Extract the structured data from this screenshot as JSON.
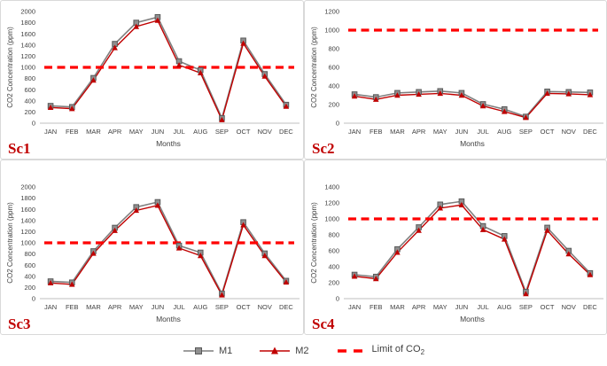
{
  "figure": {
    "legend": {
      "m1_label": "M1",
      "m2_label": "M2",
      "limit_label_main": "Limit of CO",
      "limit_label_sub": "2"
    },
    "colors": {
      "m1_line": "#7f7f7f",
      "m1_fill": "#8f8f8f",
      "m1_edge": "#595959",
      "m2": "#c00000",
      "limit": "#ff0000",
      "axis_text": "#3f3f3f",
      "axis_line": "#bfbfbf",
      "panel_label": "#c00000",
      "panel_border": "#d9d9d9"
    }
  },
  "chart_data": [
    {
      "type": "line",
      "panel_label": "Sc1",
      "xlabel": "Months",
      "ylabel": "CO2 Concentration (ppm)",
      "categories": [
        "JAN",
        "FEB",
        "MAR",
        "APR",
        "MAY",
        "JUN",
        "JUL",
        "AUG",
        "SEP",
        "OCT",
        "NOV",
        "DEC"
      ],
      "ylim": [
        0,
        2000
      ],
      "ytick_step": 200,
      "limit_line": 1000,
      "grid": false,
      "legend_position": "shared-bottom",
      "series": [
        {
          "name": "M1",
          "values": [
            310,
            290,
            810,
            1420,
            1800,
            1900,
            1110,
            950,
            90,
            1480,
            880,
            330
          ]
        },
        {
          "name": "M2",
          "values": [
            280,
            260,
            770,
            1350,
            1730,
            1840,
            1040,
            900,
            60,
            1430,
            840,
            300
          ]
        }
      ]
    },
    {
      "type": "line",
      "panel_label": "Sc2",
      "xlabel": "Months",
      "ylabel": "CO2 Concentration (ppm)",
      "categories": [
        "JAN",
        "FEB",
        "MAR",
        "APR",
        "MAY",
        "JUN",
        "JUL",
        "AUG",
        "SEP",
        "OCT",
        "NOV",
        "DEC"
      ],
      "ylim": [
        0,
        1200
      ],
      "ytick_step": 200,
      "limit_line": 1000,
      "grid": false,
      "legend_position": "shared-bottom",
      "series": [
        {
          "name": "M1",
          "values": [
            310,
            280,
            325,
            335,
            345,
            325,
            205,
            150,
            70,
            340,
            335,
            330
          ]
        },
        {
          "name": "M2",
          "values": [
            290,
            255,
            300,
            310,
            320,
            300,
            185,
            125,
            60,
            320,
            315,
            305
          ]
        }
      ]
    },
    {
      "type": "line",
      "panel_label": "Sc3",
      "xlabel": "Months",
      "ylabel": "CO2 Concentration (ppm)",
      "categories": [
        "JAN",
        "FEB",
        "MAR",
        "APR",
        "MAY",
        "JUN",
        "JUL",
        "AUG",
        "SEP",
        "OCT",
        "NOV",
        "DEC"
      ],
      "ylim": [
        0,
        2000
      ],
      "ytick_step": 200,
      "limit_line": 1000,
      "grid": false,
      "legend_position": "shared-bottom",
      "series": [
        {
          "name": "M1",
          "values": [
            310,
            290,
            850,
            1270,
            1640,
            1730,
            950,
            825,
            90,
            1370,
            810,
            320
          ]
        },
        {
          "name": "M2",
          "values": [
            280,
            255,
            810,
            1220,
            1580,
            1670,
            905,
            770,
            65,
            1320,
            770,
            295
          ]
        }
      ]
    },
    {
      "type": "line",
      "panel_label": "Sc4",
      "xlabel": "Months",
      "ylabel": "CO2 Concentration (ppm)",
      "categories": [
        "JAN",
        "FEB",
        "MAR",
        "APR",
        "MAY",
        "JUN",
        "JUL",
        "AUG",
        "SEP",
        "OCT",
        "NOV",
        "DEC"
      ],
      "ylim": [
        0,
        1400
      ],
      "ytick_step": 200,
      "limit_line": 1000,
      "grid": false,
      "legend_position": "shared-bottom",
      "series": [
        {
          "name": "M1",
          "values": [
            300,
            275,
            620,
            895,
            1180,
            1220,
            910,
            785,
            85,
            890,
            600,
            320
          ]
        },
        {
          "name": "M2",
          "values": [
            280,
            250,
            580,
            855,
            1135,
            1175,
            865,
            745,
            60,
            855,
            560,
            300
          ]
        }
      ]
    }
  ]
}
